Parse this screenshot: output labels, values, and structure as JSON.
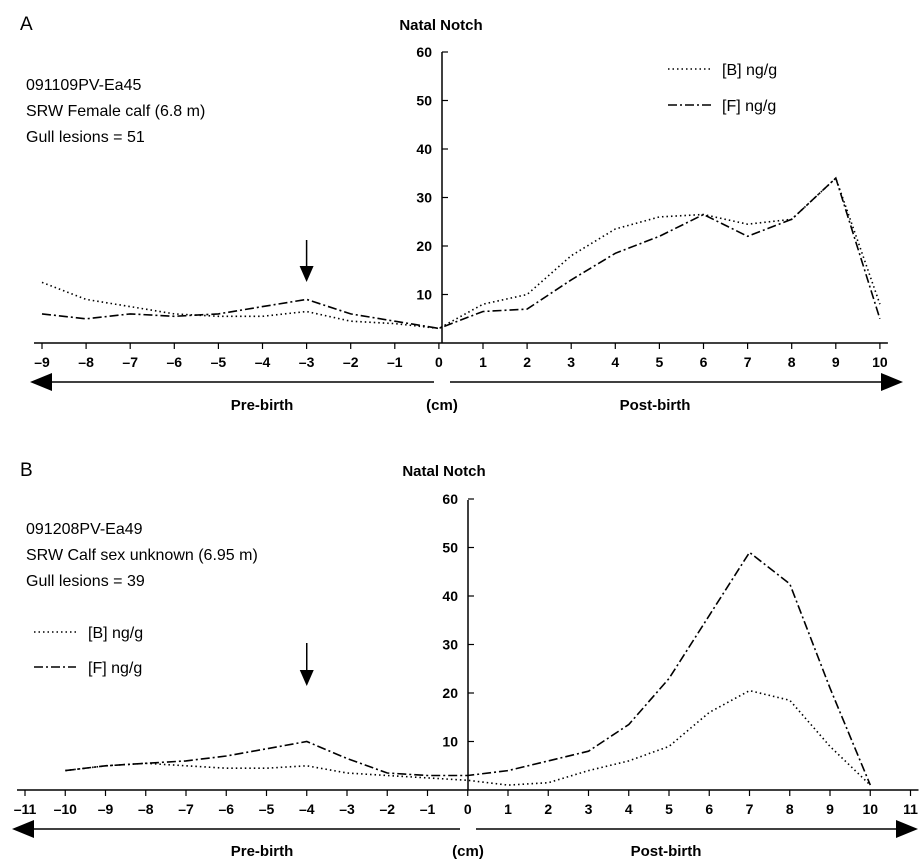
{
  "chart_data": [
    {
      "type": "line",
      "panel": "A",
      "title": "Natal Notch",
      "info_lines": [
        "091109PV-Ea45",
        "SRW Female calf (6.8 m)",
        "Gull lesions = 51"
      ],
      "xlabel": "(cm)",
      "region_left": "Pre-birth",
      "region_right": "Post-birth",
      "xlim": [
        -9,
        10
      ],
      "ylim": [
        0,
        60
      ],
      "x_ticks": [
        -9,
        -8,
        -7,
        -6,
        -5,
        -4,
        -3,
        -2,
        -1,
        0,
        1,
        2,
        3,
        4,
        5,
        6,
        7,
        8,
        9,
        10
      ],
      "x_tick_labels": [
        "–9",
        "–8",
        "–7",
        "–6",
        "–5",
        "–4",
        "–3",
        "–2",
        "–1",
        "0",
        "1",
        "2",
        "3",
        "4",
        "5",
        "6",
        "7",
        "8",
        "9",
        "10"
      ],
      "y_ticks": [
        10,
        20,
        30,
        40,
        50,
        60
      ],
      "y_tick_labels": [
        "10",
        "20",
        "30",
        "40",
        "50",
        "60"
      ],
      "legend_position": "top-right",
      "arrow_at_x": -3,
      "x": [
        -9,
        -8,
        -7,
        -6,
        -5,
        -4,
        -3,
        -2,
        -1,
        0,
        1,
        2,
        3,
        4,
        5,
        6,
        7,
        8,
        9,
        10
      ],
      "series": [
        {
          "name": "[B] ng/g",
          "style": "dotted",
          "values": [
            12.5,
            9,
            7.5,
            6,
            5.5,
            5.5,
            6.5,
            4.5,
            4,
            3,
            8,
            10,
            18,
            23.5,
            26,
            26.5,
            24.5,
            25.5,
            34,
            8
          ]
        },
        {
          "name": "[F] ng/g",
          "style": "dash-dot",
          "values": [
            6,
            5,
            6,
            5.5,
            6,
            7.5,
            9,
            6,
            4.5,
            3,
            6.5,
            7,
            13,
            18.5,
            22,
            26.5,
            22,
            25.5,
            34,
            5
          ]
        }
      ]
    },
    {
      "type": "line",
      "panel": "B",
      "title": "Natal Notch",
      "info_lines": [
        "091208PV-Ea49",
        "SRW Calf sex unknown (6.95 m)",
        "Gull lesions = 39"
      ],
      "xlabel": "(cm)",
      "region_left": "Pre-birth",
      "region_right": "Post-birth",
      "xlim": [
        -11,
        11
      ],
      "ylim": [
        0,
        60
      ],
      "x_ticks": [
        -11,
        -10,
        -9,
        -8,
        -7,
        -6,
        -5,
        -4,
        -3,
        -2,
        -1,
        0,
        1,
        2,
        3,
        4,
        5,
        6,
        7,
        8,
        9,
        10,
        11
      ],
      "x_tick_labels": [
        "–11",
        "–10",
        "–9",
        "–8",
        "–7",
        "–6",
        "–5",
        "–4",
        "–3",
        "–2",
        "–1",
        "0",
        "1",
        "2",
        "3",
        "4",
        "5",
        "6",
        "7",
        "8",
        "9",
        "10",
        "11"
      ],
      "y_ticks": [
        10,
        20,
        30,
        40,
        50,
        60
      ],
      "y_tick_labels": [
        "10",
        "20",
        "30",
        "40",
        "50",
        "60"
      ],
      "legend_position": "middle-left",
      "arrow_at_x": -4,
      "x": [
        -10,
        -9,
        -8,
        -7,
        -6,
        -5,
        -4,
        -3,
        -2,
        -1,
        0,
        1,
        2,
        3,
        4,
        5,
        6,
        7,
        8,
        9,
        10
      ],
      "series": [
        {
          "name": "[B] ng/g",
          "style": "dotted",
          "values": [
            4,
            5,
            5.5,
            5,
            4.5,
            4.5,
            5,
            3.5,
            3,
            2.5,
            2,
            1,
            1.5,
            4,
            6,
            9,
            16,
            20.5,
            18.5,
            9,
            1
          ]
        },
        {
          "name": "[F] ng/g",
          "style": "dash-dot",
          "values": [
            4,
            5,
            5.5,
            6,
            7,
            8.5,
            10,
            6.5,
            3.5,
            3,
            3,
            4,
            6,
            8,
            13.5,
            23,
            36,
            49,
            42.5,
            21,
            1
          ]
        }
      ]
    }
  ]
}
